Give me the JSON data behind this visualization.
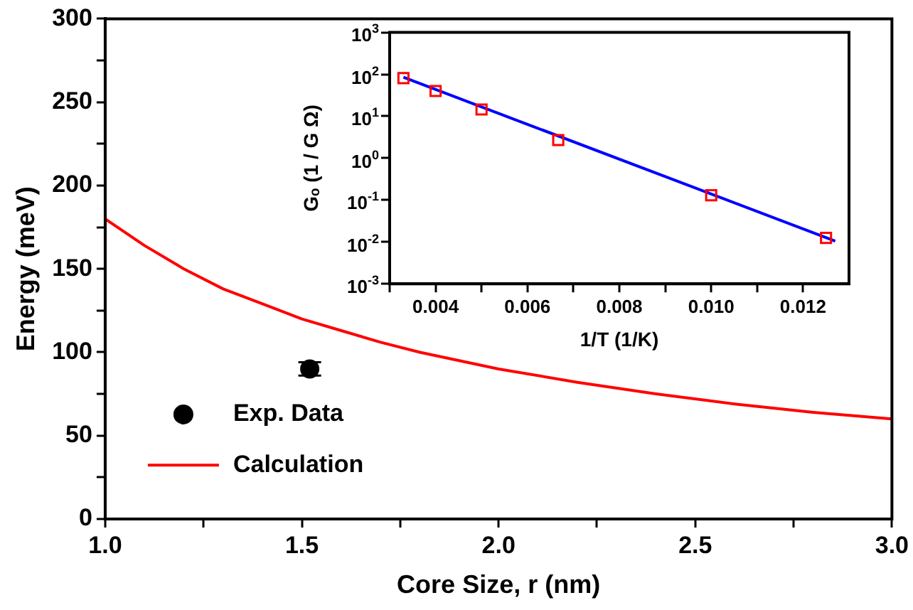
{
  "chart_data": [
    {
      "type": "line",
      "xlabel": "Core Size, r (nm)",
      "ylabel": "Energy (meV)",
      "xlim": [
        1,
        3
      ],
      "xticks": [
        {
          "value": 1,
          "label": "1.0"
        },
        {
          "value": 1.25,
          "label": null
        },
        {
          "value": 1.5,
          "label": "1.5"
        },
        {
          "value": 1.75,
          "label": null
        },
        {
          "value": 2,
          "label": "2.0"
        },
        {
          "value": 2.25,
          "label": null
        },
        {
          "value": 2.5,
          "label": "2.5"
        },
        {
          "value": 2.75,
          "label": null
        },
        {
          "value": 3,
          "label": "3.0"
        }
      ],
      "ylim": [
        0,
        300
      ],
      "yticks": [
        0,
        {
          "value": 25,
          "label": null
        },
        50,
        {
          "value": 75,
          "label": null
        },
        100,
        {
          "value": 125,
          "label": null
        },
        150,
        {
          "value": 175,
          "label": null
        },
        200,
        {
          "value": 225,
          "label": null
        },
        250,
        {
          "value": 275,
          "label": null
        },
        300
      ],
      "grid": false,
      "legend": "bottom left",
      "series": [
        {
          "name": "Exp. Data",
          "type": "scatter",
          "x": [
            1.52
          ],
          "values": [
            90
          ],
          "errors": [
            4
          ],
          "color": "#000000",
          "marker": "circle"
        },
        {
          "name": "Calculation",
          "x": [
            1.0,
            1.1,
            1.2,
            1.3,
            1.4,
            1.5,
            1.6,
            1.7,
            1.8,
            1.9,
            2.0,
            2.2,
            2.4,
            2.6,
            2.8,
            3.0
          ],
          "values": [
            180,
            164,
            150,
            138,
            129,
            120,
            113,
            106,
            100,
            95,
            90,
            82,
            75,
            69,
            64,
            60
          ],
          "color": "#ff0000",
          "marker": "none"
        }
      ]
    },
    {
      "type": "scatter",
      "xlabel": "1/T (1/K)",
      "ylabel": "Gₒ (1 / G Ω)",
      "log": "y",
      "xlim": [
        0.003,
        0.013
      ],
      "xticks": [
        {
          "value": 0.003,
          "label": null
        },
        {
          "value": 0.004,
          "label": "0.004"
        },
        {
          "value": 0.005,
          "label": null
        },
        {
          "value": 0.006,
          "label": "0.006"
        },
        {
          "value": 0.007,
          "label": null
        },
        {
          "value": 0.008,
          "label": "0.008"
        },
        {
          "value": 0.009,
          "label": null
        },
        {
          "value": 0.01,
          "label": "0.010"
        },
        {
          "value": 0.011,
          "label": null
        },
        {
          "value": 0.012,
          "label": "0.012"
        }
      ],
      "ylim": [
        0.001,
        1000
      ],
      "yticks": [
        {
          "value": 0.001,
          "label": "10$^{-3}$"
        },
        {
          "value": 0.01,
          "label": "10$^{-2}$"
        },
        {
          "value": 0.1,
          "label": "10$^{-1}$"
        },
        {
          "value": 1,
          "label": "10$^{0}$"
        },
        {
          "value": 10,
          "label": "10$^{1}$"
        },
        {
          "value": 100,
          "label": "10$^{2}$"
        },
        {
          "value": 1000,
          "label": "10$^{3}$"
        }
      ],
      "grid": false,
      "series": [
        {
          "x": [
            0.0033,
            0.004,
            0.005,
            0.00667,
            0.01,
            0.0125
          ],
          "values": [
            81,
            40,
            14.5,
            2.7,
            0.13,
            0.0125
          ],
          "color": "#ff0000",
          "marker": "square"
        },
        {
          "type": "line",
          "x": [
            0.0033,
            0.0127
          ],
          "values": [
            85,
            0.0105
          ],
          "color": "#0000ff",
          "marker": "none"
        }
      ]
    }
  ]
}
